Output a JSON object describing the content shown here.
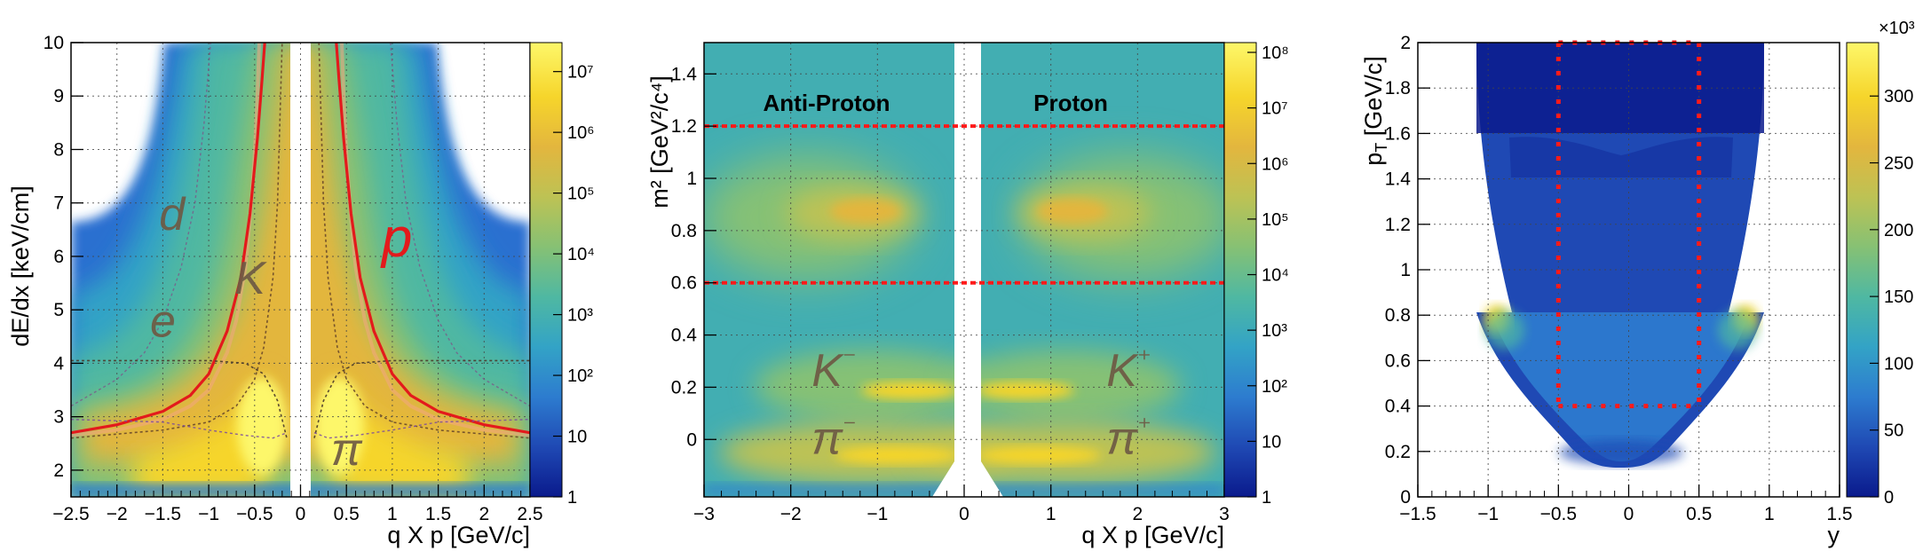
{
  "colors": {
    "palette": [
      "#0a1a8c",
      "#1f49b4",
      "#2d7ccf",
      "#33a3c6",
      "#4fb8a2",
      "#86c174",
      "#bdc254",
      "#e3b63e",
      "#f6d52b",
      "#fdf76a"
    ],
    "cut_line": "#ff1a1a",
    "model_curve": "#e31a1c",
    "species_label": "#6e5a44",
    "grid": "#444444"
  },
  "chart_data": [
    {
      "type": "heatmap",
      "id": "dedx",
      "xlabel": "q X p [GeV/c]",
      "ylabel": "dE/dx [keV/cm]",
      "xlim": [
        -2.5,
        2.5
      ],
      "ylim": [
        1.5,
        10
      ],
      "x_ticks": [
        "−2.5",
        "−2",
        "−1.5",
        "−1",
        "−0.5",
        "0",
        "0.5",
        "1",
        "1.5",
        "2",
        "2.5"
      ],
      "x_tick_values": [
        -2.5,
        -2,
        -1.5,
        -1,
        -0.5,
        0,
        0.5,
        1,
        1.5,
        2,
        2.5
      ],
      "y_ticks": [
        "2",
        "3",
        "4",
        "5",
        "6",
        "7",
        "8",
        "9",
        "10"
      ],
      "y_tick_values": [
        2,
        3,
        4,
        5,
        6,
        7,
        8,
        9,
        10
      ],
      "grid": true,
      "colorbar": {
        "scale": "log",
        "ticks": [
          "1",
          "10",
          "10²",
          "10³",
          "10⁴",
          "10⁵",
          "10⁶",
          "10⁷"
        ],
        "tick_values": [
          1,
          10,
          100,
          1000,
          10000,
          100000,
          1000000,
          10000000
        ],
        "range": [
          1,
          30000000
        ]
      },
      "annotations": [
        {
          "text": "d",
          "x": -1.4,
          "y": 6.5,
          "style": "species"
        },
        {
          "text": "e",
          "x": -1.5,
          "y": 4.5,
          "style": "species"
        },
        {
          "text": "K",
          "x": -0.55,
          "y": 5.3,
          "style": "species"
        },
        {
          "text": "p",
          "x": 1.05,
          "y": 6.0,
          "style": "proton"
        },
        {
          "text": "π",
          "x": 0.5,
          "y": 2.1,
          "style": "species"
        }
      ],
      "series": [
        {
          "kind": "proton-band",
          "x": [
            -2.5,
            -2,
            -1.5,
            -1.2,
            -1,
            -0.8,
            -0.7,
            -0.6,
            -0.55,
            -0.5,
            -0.47,
            -0.45
          ],
          "y": [
            2.65,
            2.75,
            2.95,
            3.2,
            3.5,
            4.2,
            4.8,
            5.8,
            6.7,
            7.9,
            9.0,
            10.0
          ]
        },
        {
          "kind": "proton-band",
          "x": [
            0.45,
            0.47,
            0.5,
            0.55,
            0.6,
            0.7,
            0.8,
            1,
            1.2,
            1.5,
            2,
            2.5
          ],
          "y": [
            10.0,
            9.0,
            7.9,
            6.7,
            5.8,
            4.8,
            4.2,
            3.5,
            3.2,
            2.95,
            2.75,
            2.65
          ]
        },
        {
          "kind": "proton-curve",
          "x": [
            -2.5,
            -2,
            -1.5,
            -1.2,
            -1,
            -0.8,
            -0.65,
            -0.55,
            -0.47,
            -0.42,
            -0.39
          ],
          "y": [
            2.7,
            2.85,
            3.1,
            3.4,
            3.8,
            4.6,
            5.6,
            6.8,
            8.2,
            9.3,
            10.0
          ]
        },
        {
          "kind": "proton-curve",
          "x": [
            0.39,
            0.42,
            0.47,
            0.55,
            0.65,
            0.8,
            1,
            1.2,
            1.5,
            2,
            2.5
          ],
          "y": [
            10.0,
            9.3,
            8.2,
            6.8,
            5.6,
            4.6,
            3.8,
            3.4,
            3.1,
            2.85,
            2.7
          ]
        },
        {
          "kind": "kaon-curve",
          "x": [
            -2.5,
            -1.5,
            -1,
            -0.7,
            -0.5,
            -0.4,
            -0.3,
            -0.25,
            -0.2
          ],
          "y": [
            2.6,
            2.75,
            2.9,
            3.2,
            3.7,
            4.3,
            5.6,
            7.0,
            10.0
          ]
        },
        {
          "kind": "kaon-curve",
          "x": [
            0.2,
            0.25,
            0.3,
            0.4,
            0.5,
            0.7,
            1,
            1.5,
            2.5
          ],
          "y": [
            10.0,
            7.0,
            5.6,
            4.3,
            3.7,
            3.2,
            2.9,
            2.75,
            2.6
          ]
        },
        {
          "kind": "deuteron-curve",
          "x": [
            -2.5,
            -2,
            -1.7,
            -1.5,
            -1.3,
            -1.15,
            -1.05,
            -0.98
          ],
          "y": [
            3.2,
            3.7,
            4.2,
            4.8,
            5.8,
            7.0,
            8.5,
            10.0
          ]
        },
        {
          "kind": "deuteron-curve",
          "x": [
            0.98,
            1.05,
            1.15,
            1.3,
            1.5,
            1.7,
            2,
            2.5
          ],
          "y": [
            10.0,
            8.5,
            7.0,
            5.8,
            4.8,
            4.2,
            3.7,
            3.2
          ]
        },
        {
          "kind": "electron-curve",
          "x": [
            -2.5,
            -1.5,
            -1,
            -0.6,
            -0.4,
            -0.25,
            -0.15
          ],
          "y": [
            4.05,
            4.05,
            4.05,
            4.0,
            3.8,
            3.3,
            2.6
          ]
        },
        {
          "kind": "electron-curve",
          "x": [
            0.15,
            0.25,
            0.4,
            0.6,
            1,
            1.5,
            2.5
          ],
          "y": [
            2.6,
            3.3,
            3.8,
            4.0,
            4.05,
            4.05,
            4.05
          ]
        },
        {
          "kind": "pion-curve",
          "x": [
            -2.5,
            -1.5,
            -1,
            -0.6,
            -0.3,
            -0.15
          ],
          "y": [
            2.95,
            2.9,
            2.75,
            2.65,
            2.6,
            2.7
          ]
        },
        {
          "kind": "pion-curve",
          "x": [
            0.15,
            0.3,
            0.6,
            1,
            1.5,
            2.5
          ],
          "y": [
            2.7,
            2.6,
            2.65,
            2.75,
            2.9,
            2.95
          ]
        }
      ]
    },
    {
      "type": "heatmap",
      "id": "msq",
      "xlabel": "q X p [GeV/c]",
      "ylabel": "m² [GeV²/c⁴]",
      "xlim": [
        -3,
        3
      ],
      "ylim": [
        -0.22,
        1.52
      ],
      "x_ticks": [
        "−3",
        "−2",
        "−1",
        "0",
        "1",
        "2",
        "3"
      ],
      "x_tick_values": [
        -3,
        -2,
        -1,
        0,
        1,
        2,
        3
      ],
      "y_ticks": [
        "0",
        "0.2",
        "0.4",
        "0.6",
        "0.8",
        "1",
        "1.2",
        "1.4"
      ],
      "y_tick_values": [
        0,
        0.2,
        0.4,
        0.6,
        0.8,
        1,
        1.2,
        1.4
      ],
      "grid": true,
      "colorbar": {
        "scale": "log",
        "ticks": [
          "1",
          "10",
          "10²",
          "10³",
          "10⁴",
          "10⁵",
          "10⁶",
          "10⁷",
          "10⁸"
        ],
        "tick_values": [
          1,
          10,
          100,
          1000,
          10000,
          100000,
          1000000,
          10000000,
          100000000
        ],
        "range": [
          1,
          150000000
        ]
      },
      "cut_lines_y": [
        0.6,
        1.2
      ],
      "labels": {
        "left_region": "Anti-Proton",
        "right_region": "Proton"
      },
      "annotations": [
        {
          "text": "K⁻",
          "x": -1.5,
          "y": 0.26
        },
        {
          "text": "K⁺",
          "x": 1.9,
          "y": 0.26
        },
        {
          "text": "π⁻",
          "x": -1.5,
          "y": 0.0
        },
        {
          "text": "π⁺",
          "x": 1.9,
          "y": 0.0
        }
      ]
    },
    {
      "type": "heatmap",
      "id": "acceptance",
      "xlabel": "y",
      "ylabel": "p_T [GeV/c]",
      "xlim": [
        -1.5,
        1.5
      ],
      "ylim": [
        0,
        2
      ],
      "x_ticks": [
        "−1.5",
        "−1",
        "−0.5",
        "0",
        "0.5",
        "1",
        "1.5"
      ],
      "x_tick_values": [
        -1.5,
        -1,
        -0.5,
        0,
        0.5,
        1,
        1.5
      ],
      "y_ticks": [
        "0",
        "0.2",
        "0.4",
        "0.6",
        "0.8",
        "1",
        "1.2",
        "1.4",
        "1.6",
        "1.8",
        "2"
      ],
      "y_tick_values": [
        0,
        0.2,
        0.4,
        0.6,
        0.8,
        1,
        1.2,
        1.4,
        1.6,
        1.8,
        2
      ],
      "grid": true,
      "colorbar": {
        "scale": "linear",
        "multiplier": "×10³",
        "ticks": [
          "0",
          "50",
          "100",
          "150",
          "200",
          "250",
          "300"
        ],
        "tick_values": [
          0,
          50,
          100,
          150,
          200,
          250,
          300
        ],
        "range": [
          0,
          340
        ]
      },
      "cut_box": {
        "x": [
          -0.5,
          0.5
        ],
        "y": [
          0.4,
          2.0
        ]
      }
    }
  ]
}
